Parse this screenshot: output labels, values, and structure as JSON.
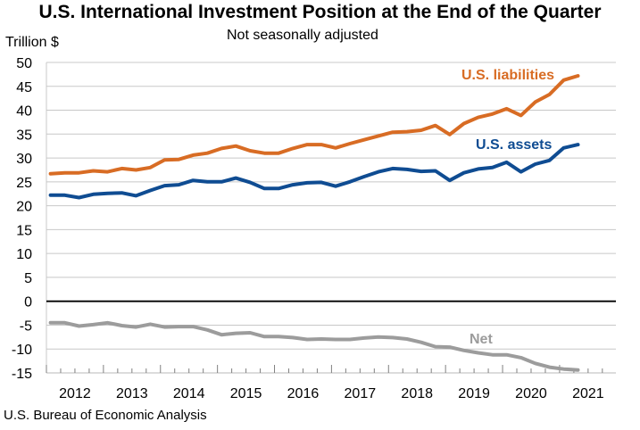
{
  "colors": {
    "liabilities": "#D86C24",
    "assets": "#0F4C92",
    "net": "#9C9C9C",
    "gridline": "#C8C8C8",
    "zero_line": "#000000",
    "text": "#000000"
  },
  "chart_data": {
    "type": "line",
    "title": "U.S. International Investment Position at the End of the Quarter",
    "subtitle": "Not seasonally adjusted",
    "ylabel": "Trillion $",
    "xlabel": "",
    "ylim": [
      -15,
      50
    ],
    "y_ticks": [
      -15,
      -10,
      -5,
      0,
      5,
      10,
      15,
      20,
      25,
      30,
      35,
      40,
      45,
      50
    ],
    "y_tick_labels": [
      "-15",
      "-10",
      "-5",
      "0",
      "5",
      "10",
      "15",
      "20",
      "25",
      "30",
      "35",
      "40",
      "45",
      "50"
    ],
    "x_tick_labels": [
      "2012",
      "2013",
      "2014",
      "2015",
      "2016",
      "2017",
      "2018",
      "2019",
      "2020",
      "2021"
    ],
    "grid": true,
    "quarters": [
      "2011Q4",
      "2012Q1",
      "2012Q2",
      "2012Q3",
      "2012Q4",
      "2013Q1",
      "2013Q2",
      "2013Q3",
      "2013Q4",
      "2014Q1",
      "2014Q2",
      "2014Q3",
      "2014Q4",
      "2015Q1",
      "2015Q2",
      "2015Q3",
      "2015Q4",
      "2016Q1",
      "2016Q2",
      "2016Q3",
      "2016Q4",
      "2017Q1",
      "2017Q2",
      "2017Q3",
      "2017Q4",
      "2018Q1",
      "2018Q2",
      "2018Q3",
      "2018Q4",
      "2019Q1",
      "2019Q2",
      "2019Q3",
      "2019Q4",
      "2020Q1",
      "2020Q2",
      "2020Q3",
      "2020Q4",
      "2021Q1"
    ],
    "series": [
      {
        "name": "U.S. liabilities",
        "color_key": "liabilities",
        "values": [
          26.7,
          26.9,
          26.9,
          27.3,
          27.1,
          27.8,
          27.5,
          28.0,
          29.6,
          29.7,
          30.6,
          31.0,
          32.0,
          32.5,
          31.5,
          31.0,
          31.0,
          32.0,
          32.8,
          32.8,
          32.1,
          33.0,
          33.8,
          34.6,
          35.4,
          35.5,
          35.8,
          36.8,
          34.9,
          37.2,
          38.5,
          39.2,
          40.3,
          38.9,
          41.7,
          43.3,
          46.3,
          47.2
        ]
      },
      {
        "name": "U.S. assets",
        "color_key": "assets",
        "values": [
          22.2,
          22.2,
          21.7,
          22.4,
          22.6,
          22.7,
          22.1,
          23.2,
          24.2,
          24.4,
          25.3,
          25.0,
          25.0,
          25.8,
          24.9,
          23.6,
          23.6,
          24.4,
          24.8,
          24.9,
          24.1,
          25.0,
          26.1,
          27.1,
          27.8,
          27.6,
          27.2,
          27.3,
          25.3,
          26.9,
          27.7,
          28.0,
          29.1,
          27.1,
          28.7,
          29.5,
          32.1,
          32.8
        ]
      },
      {
        "name": "Net",
        "color_key": "net",
        "values": [
          -4.5,
          -4.5,
          -5.2,
          -4.9,
          -4.5,
          -5.1,
          -5.4,
          -4.8,
          -5.4,
          -5.3,
          -5.3,
          -6.0,
          -7.0,
          -6.7,
          -6.6,
          -7.4,
          -7.4,
          -7.6,
          -8.0,
          -7.9,
          -8.0,
          -8.0,
          -7.7,
          -7.5,
          -7.6,
          -7.9,
          -8.6,
          -9.5,
          -9.6,
          -10.3,
          -10.8,
          -11.2,
          -11.2,
          -11.8,
          -13.0,
          -13.8,
          -14.2,
          -14.4
        ]
      }
    ],
    "annotations": [
      {
        "text": "U.S. liabilities",
        "series": "liabilities"
      },
      {
        "text": "U.S. assets",
        "series": "assets"
      },
      {
        "text": "Net",
        "series": "net"
      }
    ],
    "source": "U.S. Bureau of Economic Analysis"
  }
}
